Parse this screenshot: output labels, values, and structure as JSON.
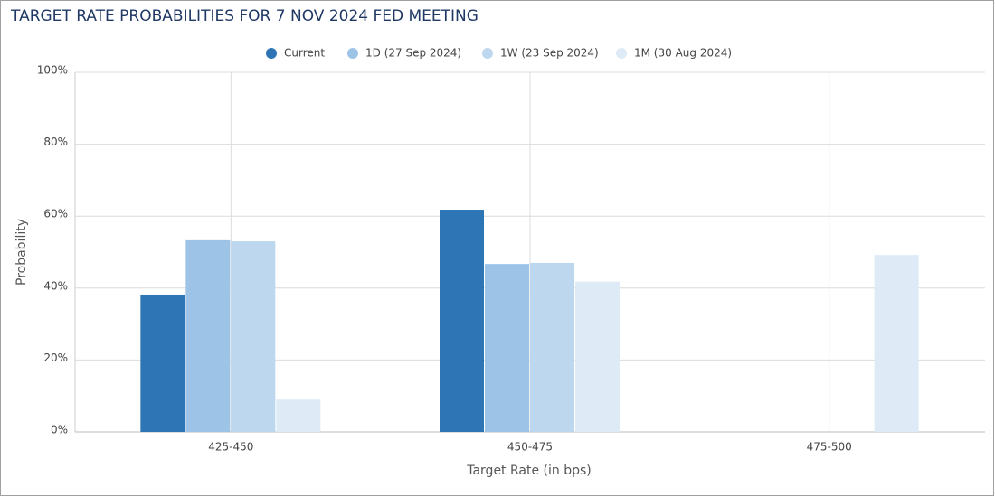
{
  "chart_data": {
    "type": "bar",
    "title": "TARGET RATE PROBABILITIES FOR 7 NOV 2024 FED MEETING",
    "x_label": "Target Rate (in bps)",
    "y_label": "Probability",
    "categories": [
      "425-450",
      "450-475",
      "475-500"
    ],
    "series": [
      {
        "name": "Current",
        "color": "#2e75b6",
        "values": [
          38.2,
          61.8,
          0
        ]
      },
      {
        "name": "1D (27 Sep 2024)",
        "color": "#9dc3e6",
        "values": [
          53.3,
          46.7,
          0
        ]
      },
      {
        "name": "1W (23 Sep 2024)",
        "color": "#bdd7ee",
        "values": [
          53.0,
          47.0,
          0
        ]
      },
      {
        "name": "1M (30 Aug 2024)",
        "color": "#deebf7",
        "values": [
          9.0,
          41.8,
          49.2
        ]
      }
    ],
    "ylim": [
      0,
      100
    ],
    "yticks": [
      {
        "value": 0,
        "label": "0%"
      },
      {
        "value": 20,
        "label": "20%"
      },
      {
        "value": 40,
        "label": "40%"
      },
      {
        "value": 60,
        "label": "60%"
      },
      {
        "value": 80,
        "label": "80%"
      },
      {
        "value": 100,
        "label": "100%"
      }
    ],
    "grid": true,
    "legend": "top"
  }
}
